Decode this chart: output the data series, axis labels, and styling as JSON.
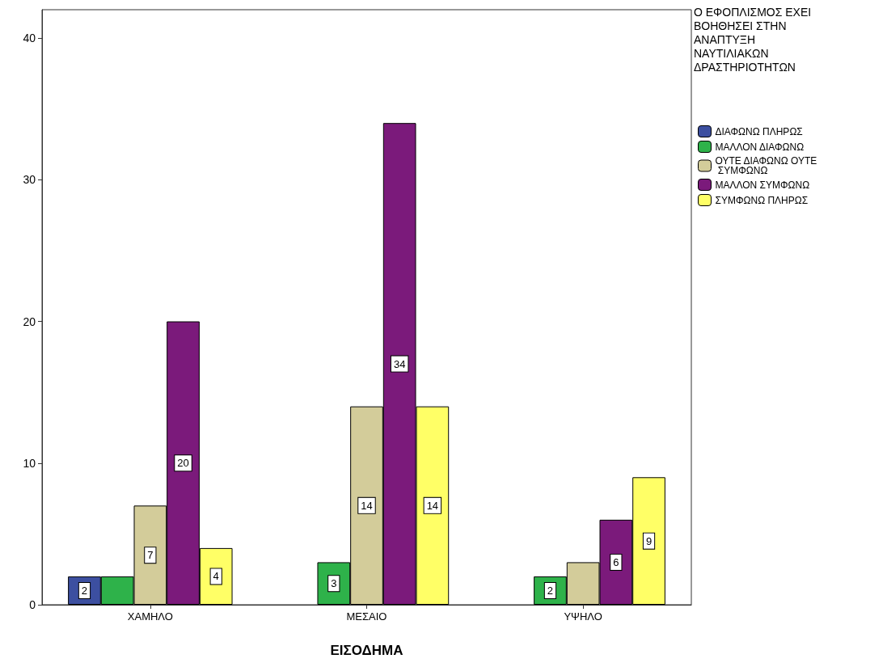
{
  "chart_data": {
    "type": "bar",
    "xlabel": "ΕΙΣΟΔΗΜΑ",
    "legend_title": "Ο ΕΦΟΠΛΙΣΜΟΣ ΕΧΕΙ ΒΟΗΘΗΣΕΙ ΣΤΗΝ ΑΝΑΠΤΥΞΗ ΝΑΥΤΙΛΙΑΚΩΝ ΔΡΑΣΤΗΡΙΟΤΗΤΩΝ",
    "categories": [
      "ΧΑΜΗΛΟ",
      "ΜΕΣΑΙΟ",
      "ΥΨΗΛΟ"
    ],
    "series": [
      {
        "name": "ΔΙΑΦΩΝΩ ΠΛΗΡΩΣ",
        "color": "#3c4fa0",
        "values": [
          2,
          null,
          null
        ],
        "value_labels": [
          "2",
          null,
          null
        ]
      },
      {
        "name": "ΜΑΛΛΟΝ ΔΙΑΦΩΝΩ",
        "color": "#2eb24a",
        "values": [
          2,
          3,
          2
        ],
        "value_labels": [
          null,
          "3",
          "2"
        ]
      },
      {
        "name": "ΟΥΤΕ ΔΙΑΦΩΝΩ ΟΥΤΕ ΣΥΜΦΩΝΩ",
        "color": "#d3cc9a",
        "values": [
          7,
          14,
          3
        ],
        "value_labels": [
          "7",
          "14",
          null
        ]
      },
      {
        "name": "ΜΑΛΛΟΝ ΣΥΜΦΩΝΩ",
        "color": "#7b1a7b",
        "values": [
          20,
          34,
          6
        ],
        "value_labels": [
          "20",
          "34",
          "6"
        ]
      },
      {
        "name": "ΣΥΜΦΩΝΩ ΠΛΗΡΩΣ",
        "color": "#ffff66",
        "values": [
          4,
          14,
          9
        ],
        "value_labels": [
          "4",
          "14",
          "9"
        ]
      }
    ],
    "ylim": [
      0,
      42
    ],
    "yticks": [
      0,
      10,
      20,
      30,
      40
    ],
    "grid": false,
    "legend": "right"
  }
}
